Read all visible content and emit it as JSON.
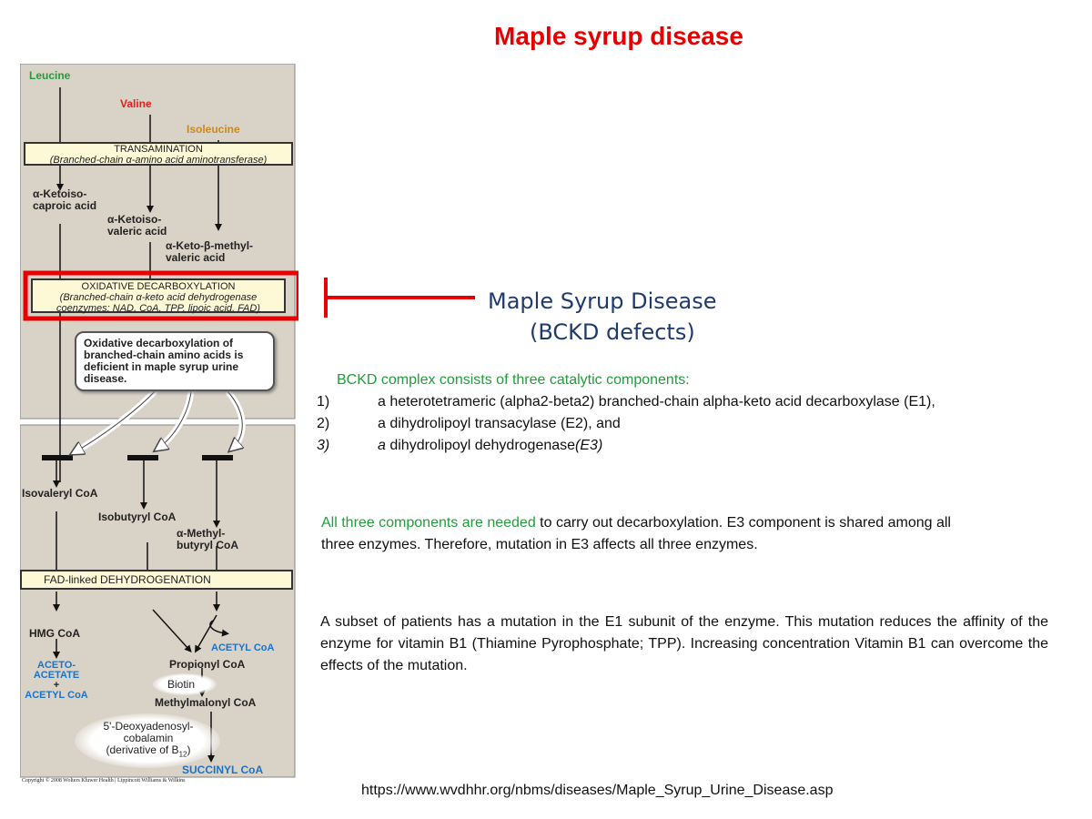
{
  "title": "Maple syrup disease",
  "pathway": {
    "amino_acids": [
      {
        "name": "Leucine",
        "color": "#1f9e3a"
      },
      {
        "name": "Valine",
        "color": "#e0201a"
      },
      {
        "name": "Isoleucine",
        "color": "#c98a1e"
      }
    ],
    "transamination": {
      "title": "TRANSAMINATION",
      "enzyme": "(Branched-chain α-amino acid aminotransferase)"
    },
    "keto_acids": [
      {
        "line1": "α-Ketoiso-",
        "line2": "caproic acid"
      },
      {
        "line1": "α-Ketoiso-",
        "line2": "valeric acid"
      },
      {
        "line1": "α-Keto-β-methyl-",
        "line2": "valeric acid"
      }
    ],
    "decarboxylation": {
      "title": "OXIDATIVE DECARBOXYLATION",
      "enzyme": "(Branched-chain α-keto acid dehydrogenase",
      "coenzymes": "coenzymes: NAD, CoA, TPP, lipoic acid, FAD)"
    },
    "callout": "Oxidative decarboxylation of branched-chain amino acids is deficient in maple syrup urine disease.",
    "acyl_coas": [
      {
        "line1": "Isovaleryl CoA",
        "line2": ""
      },
      {
        "line1": "Isobutyryl CoA",
        "line2": ""
      },
      {
        "line1": "α-Methyl-",
        "line2": "butyryl CoA"
      }
    ],
    "fad_step": "FAD-linked DEHYDROGENATION",
    "hmg_coa": "HMG CoA",
    "acetoacetate": {
      "line1": "ACETO-",
      "line2": "ACETATE",
      "line3": "+",
      "line4": "ACETYL CoA"
    },
    "acetyl_coa": "ACETYL CoA",
    "propionyl_coa": "Propionyl CoA",
    "biotin": "Biotin",
    "methylmalonyl_coa": "Methylmalonyl CoA",
    "cofactor": {
      "line1": "5'-Deoxyadenosyl-",
      "line2": "cobalamin",
      "line3": "(derivative of B",
      "sub": "12",
      "line3_end": ")"
    },
    "succinyl_coa": "SUCCINYL CoA",
    "copyright": "Copyright © 2008 Wolters Kluwer Health | Lippincott Williams & Wilkins",
    "colors": {
      "panel": "#d9d2c7",
      "box": "#fdf8d6",
      "highlight": "#e80000",
      "product_blue": "#1a73c9"
    }
  },
  "msd_heading": {
    "line1": "Maple Syrup Disease",
    "line2": "(BCKD defects)"
  },
  "bckd": {
    "intro": "BCKD complex consists of three catalytic components:",
    "items": [
      {
        "num": "1)",
        "text": "a heterotetrameric (alpha2-beta2) branched-chain alpha-keto acid decarboxylase (E1),"
      },
      {
        "num": "2)",
        "text": "a dihydrolipoyl transacylase (E2), and"
      },
      {
        "num": "3)",
        "text_a": "a",
        "text_b": " dihydrolipoyl dehydrogenase",
        "text_c": "(E3)"
      }
    ]
  },
  "para2": {
    "green": "All three components are needed",
    "rest": " to carry out decarboxylation. E3 component is shared among all three enzymes.  Therefore, mutation in E3 affects all three enzymes."
  },
  "para3": "A subset of patients has a mutation in the E1 subunit of the enzyme. This mutation reduces the affinity of the enzyme for vitamin B1 (Thiamine Pyrophosphate; TPP). Increasing concentration Vitamin  B1 can overcome the effects of the mutation.",
  "url": "https://www.wvdhhr.org/nbms/diseases/Maple_Syrup_Urine_Disease.asp"
}
